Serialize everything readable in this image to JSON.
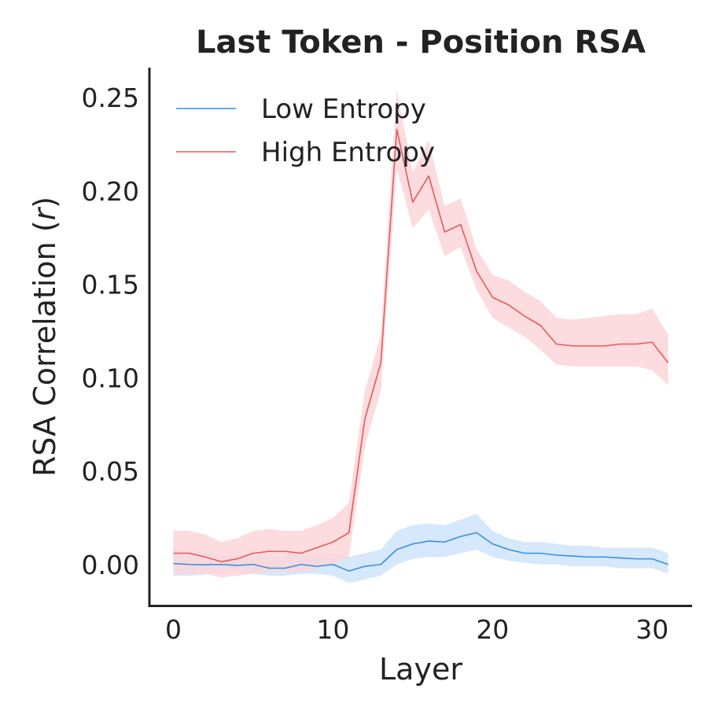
{
  "chart_data": {
    "type": "line",
    "title": "Last Token - Position RSA",
    "xlabel": "Layer",
    "ylabel_main": "RSA Correlation (",
    "ylabel_var": "r",
    "ylabel_close": ")",
    "xlim": [
      -1.5,
      32.5
    ],
    "ylim": [
      -0.022,
      0.266
    ],
    "xticks": [
      0,
      10,
      20,
      30
    ],
    "xtick_labels": [
      "0",
      "10",
      "20",
      "30"
    ],
    "yticks": [
      0.0,
      0.05,
      0.1,
      0.15,
      0.2,
      0.25
    ],
    "ytick_labels": [
      "0.00",
      "0.05",
      "0.10",
      "0.15",
      "0.20",
      "0.25"
    ],
    "legend_position": "upper-left",
    "grid": false,
    "x": [
      0,
      1,
      2,
      3,
      4,
      5,
      6,
      7,
      8,
      9,
      10,
      11,
      12,
      13,
      14,
      15,
      16,
      17,
      18,
      19,
      20,
      21,
      22,
      23,
      24,
      25,
      26,
      27,
      28,
      29,
      30,
      31
    ],
    "series": [
      {
        "name": "Low Entropy",
        "color": "#3b8ee0",
        "band_color": "#cfe4fa",
        "values": [
          0.0005,
          0.0,
          -0.0002,
          0.0,
          -0.0005,
          0.0,
          -0.002,
          -0.002,
          0.0,
          -0.001,
          0.0,
          -0.0035,
          -0.001,
          0.0,
          0.008,
          0.011,
          0.0125,
          0.012,
          0.015,
          0.017,
          0.011,
          0.008,
          0.006,
          0.006,
          0.005,
          0.0045,
          0.004,
          0.004,
          0.0035,
          0.003,
          0.003,
          0.0
        ],
        "lower": [
          -0.006,
          -0.006,
          -0.0055,
          -0.003,
          -0.004,
          -0.005,
          -0.006,
          -0.006,
          -0.005,
          -0.005,
          -0.006,
          -0.01,
          -0.008,
          -0.006,
          0.0,
          0.003,
          0.004,
          0.004,
          0.006,
          0.008,
          0.004,
          0.002,
          0.001,
          0.0,
          0.0,
          -0.001,
          -0.001,
          -0.001,
          -0.002,
          -0.002,
          -0.002,
          -0.005
        ],
        "upper": [
          0.008,
          0.007,
          0.007,
          0.005,
          0.004,
          0.005,
          0.004,
          0.004,
          0.006,
          0.004,
          0.006,
          0.004,
          0.006,
          0.008,
          0.018,
          0.021,
          0.022,
          0.021,
          0.024,
          0.027,
          0.018,
          0.014,
          0.012,
          0.012,
          0.011,
          0.01,
          0.01,
          0.009,
          0.009,
          0.009,
          0.009,
          0.006
        ]
      },
      {
        "name": "High Entropy",
        "color": "#e55a5a",
        "band_color": "#fbd6d8",
        "values": [
          0.006,
          0.006,
          0.004,
          0.0015,
          0.003,
          0.006,
          0.007,
          0.007,
          0.006,
          0.009,
          0.012,
          0.017,
          0.078,
          0.108,
          0.233,
          0.194,
          0.208,
          0.178,
          0.182,
          0.157,
          0.143,
          0.139,
          0.133,
          0.128,
          0.118,
          0.117,
          0.117,
          0.117,
          0.118,
          0.118,
          0.119,
          0.108
        ],
        "lower": [
          -0.005,
          -0.005,
          -0.005,
          -0.007,
          -0.006,
          -0.005,
          -0.004,
          -0.004,
          -0.004,
          -0.002,
          0.0,
          0.004,
          0.063,
          0.093,
          0.212,
          0.18,
          0.19,
          0.165,
          0.17,
          0.147,
          0.132,
          0.127,
          0.122,
          0.115,
          0.107,
          0.106,
          0.106,
          0.106,
          0.106,
          0.106,
          0.104,
          0.096
        ],
        "upper": [
          0.018,
          0.018,
          0.016,
          0.012,
          0.014,
          0.018,
          0.019,
          0.018,
          0.018,
          0.021,
          0.025,
          0.033,
          0.093,
          0.123,
          0.254,
          0.21,
          0.227,
          0.192,
          0.196,
          0.169,
          0.155,
          0.152,
          0.146,
          0.141,
          0.132,
          0.131,
          0.132,
          0.133,
          0.134,
          0.134,
          0.137,
          0.123
        ]
      }
    ]
  }
}
